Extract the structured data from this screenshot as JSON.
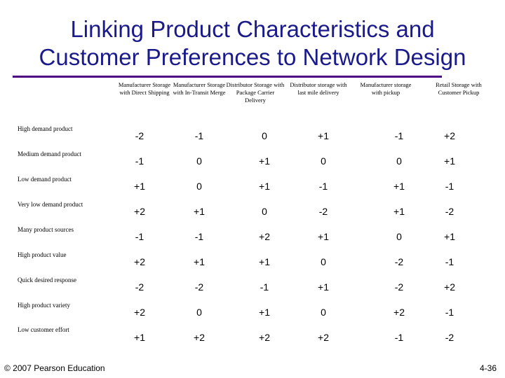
{
  "title_line1": "Linking Product Characteristics and",
  "title_line2": "Customer Preferences to Network Design",
  "columns": [
    "Manufacturer Storage with Direct Shipping",
    "Manufacturer Storage with In-Transit Merge",
    "Distributor Storage with Package Carrier Delivery",
    "Distributor storage with last mile delivery",
    "Manufacturer storage with pickup",
    "Retail Storage with Customer Pickup"
  ],
  "rows": [
    {
      "label": "High demand product",
      "values": [
        "-2",
        "-1",
        "0",
        "+1",
        "-1",
        "+2"
      ]
    },
    {
      "label": "Medium demand product",
      "values": [
        "-1",
        "0",
        "+1",
        "0",
        "0",
        "+1"
      ]
    },
    {
      "label": "Low demand product",
      "values": [
        "+1",
        "0",
        "+1",
        "-1",
        "+1",
        "-1"
      ]
    },
    {
      "label": "Very low demand product",
      "values": [
        "+2",
        "+1",
        "0",
        "-2",
        "+1",
        "-2"
      ]
    },
    {
      "label": "Many product sources",
      "values": [
        "-1",
        "-1",
        "+2",
        "+1",
        "0",
        "+1"
      ]
    },
    {
      "label": "High product value",
      "values": [
        "+2",
        "+1",
        "+1",
        "0",
        "-2",
        "-1"
      ]
    },
    {
      "label": "Quick desired response",
      "values": [
        "-2",
        "-2",
        "-1",
        "+1",
        "-2",
        "+2"
      ]
    },
    {
      "label": "High product variety",
      "values": [
        "+2",
        "0",
        "+1",
        "0",
        "+2",
        "-1"
      ]
    },
    {
      "label": "Low customer effort",
      "values": [
        "+1",
        "+2",
        "+2",
        "+2",
        "-1",
        "-2"
      ]
    }
  ],
  "footer": {
    "copyright": "© 2007 Pearson Education",
    "slide_number": "4-36"
  },
  "colors": {
    "title": "#1a1a8c",
    "rule": "#4b0082"
  }
}
